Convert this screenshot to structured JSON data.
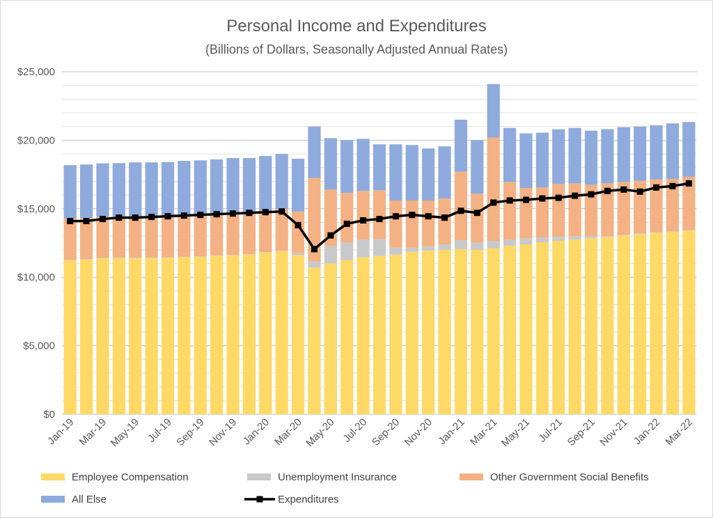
{
  "chart_data": {
    "type": "bar",
    "title": "Personal Income and Expenditures",
    "subtitle": "(Billions of Dollars, Seasonally Adjusted Annual Rates)",
    "xlabel": "",
    "ylabel": "",
    "ylim": [
      0,
      25000
    ],
    "yticks": [
      0,
      5000,
      10000,
      15000,
      20000,
      25000
    ],
    "ytick_labels": [
      "$0",
      "$5,000",
      "$10,000",
      "$15,000",
      "$20,000",
      "$25,000"
    ],
    "grid": true,
    "legend_position": "bottom",
    "categories": [
      "Jan-19",
      "Feb-19",
      "Mar-19",
      "Apr-19",
      "May-19",
      "Jun-19",
      "Jul-19",
      "Aug-19",
      "Sep-19",
      "Oct-19",
      "Nov-19",
      "Dec-19",
      "Jan-20",
      "Feb-20",
      "Mar-20",
      "Apr-20",
      "May-20",
      "Jun-20",
      "Jul-20",
      "Aug-20",
      "Sep-20",
      "Oct-20",
      "Nov-20",
      "Dec-20",
      "Jan-21",
      "Feb-21",
      "Mar-21",
      "Apr-21",
      "May-21",
      "Jun-21",
      "Jul-21",
      "Aug-21",
      "Sep-21",
      "Oct-21",
      "Nov-21",
      "Dec-21",
      "Jan-22",
      "Feb-22",
      "Mar-22"
    ],
    "xtick_labels": [
      "Jan-19",
      "Mar-19",
      "May-19",
      "Jul-19",
      "Sep-19",
      "Nov-19",
      "Jan-20",
      "Mar-20",
      "May-20",
      "Jul-20",
      "Sep-20",
      "Nov-20",
      "Jan-21",
      "Mar-21",
      "May-21",
      "Jul-21",
      "Sep-21",
      "Nov-21",
      "Jan-22",
      "Mar-22"
    ],
    "series": [
      {
        "name": "Employee Compensation",
        "kind": "bar-stacked",
        "color": "#ffd966",
        "values": [
          11250,
          11300,
          11380,
          11400,
          11400,
          11400,
          11420,
          11460,
          11500,
          11550,
          11600,
          11650,
          11800,
          11900,
          11600,
          10700,
          11000,
          11250,
          11450,
          11550,
          11650,
          11850,
          11950,
          12000,
          12050,
          12000,
          12100,
          12300,
          12400,
          12550,
          12650,
          12750,
          12850,
          12950,
          13050,
          13150,
          13250,
          13300,
          13400
        ]
      },
      {
        "name": "Unemployment Insurance",
        "kind": "bar-stacked",
        "color": "#c9c9c9",
        "values": [
          30,
          30,
          30,
          30,
          30,
          30,
          30,
          30,
          30,
          30,
          30,
          30,
          30,
          30,
          150,
          450,
          1300,
          1300,
          1300,
          1250,
          500,
          300,
          300,
          400,
          650,
          550,
          550,
          450,
          450,
          350,
          300,
          250,
          150,
          60,
          50,
          50,
          40,
          30,
          30
        ]
      },
      {
        "name": "Other Government Social Benefits",
        "kind": "bar-stacked",
        "color": "#f4b183",
        "values": [
          3000,
          3000,
          3000,
          3000,
          3000,
          3050,
          3050,
          3050,
          3050,
          3050,
          3050,
          3050,
          3050,
          3050,
          3050,
          6100,
          4100,
          3600,
          3550,
          3550,
          3450,
          3450,
          3350,
          3350,
          5000,
          3550,
          7550,
          4200,
          3650,
          3650,
          3850,
          3850,
          3750,
          3850,
          3850,
          3850,
          3850,
          3850,
          3900
        ]
      },
      {
        "name": "All Else",
        "kind": "bar-stacked",
        "color": "#8faadc",
        "values": [
          3900,
          3900,
          3900,
          3900,
          3950,
          3900,
          3900,
          3950,
          3950,
          3970,
          4020,
          3970,
          3970,
          4020,
          3850,
          3750,
          3750,
          3850,
          3800,
          3350,
          4100,
          4050,
          3800,
          3800,
          3800,
          3900,
          3900,
          3950,
          4000,
          4000,
          4000,
          4050,
          3950,
          3950,
          4000,
          3950,
          3950,
          4050,
          4000
        ]
      },
      {
        "name": "Expenditures",
        "kind": "line",
        "color": "#000000",
        "values": [
          14100,
          14100,
          14250,
          14350,
          14350,
          14400,
          14450,
          14500,
          14550,
          14600,
          14650,
          14700,
          14750,
          14800,
          13800,
          12050,
          13050,
          13900,
          14150,
          14250,
          14450,
          14550,
          14450,
          14350,
          14850,
          14700,
          15450,
          15600,
          15650,
          15750,
          15800,
          15950,
          16050,
          16300,
          16400,
          16250,
          16550,
          16650,
          16850
        ]
      }
    ]
  }
}
